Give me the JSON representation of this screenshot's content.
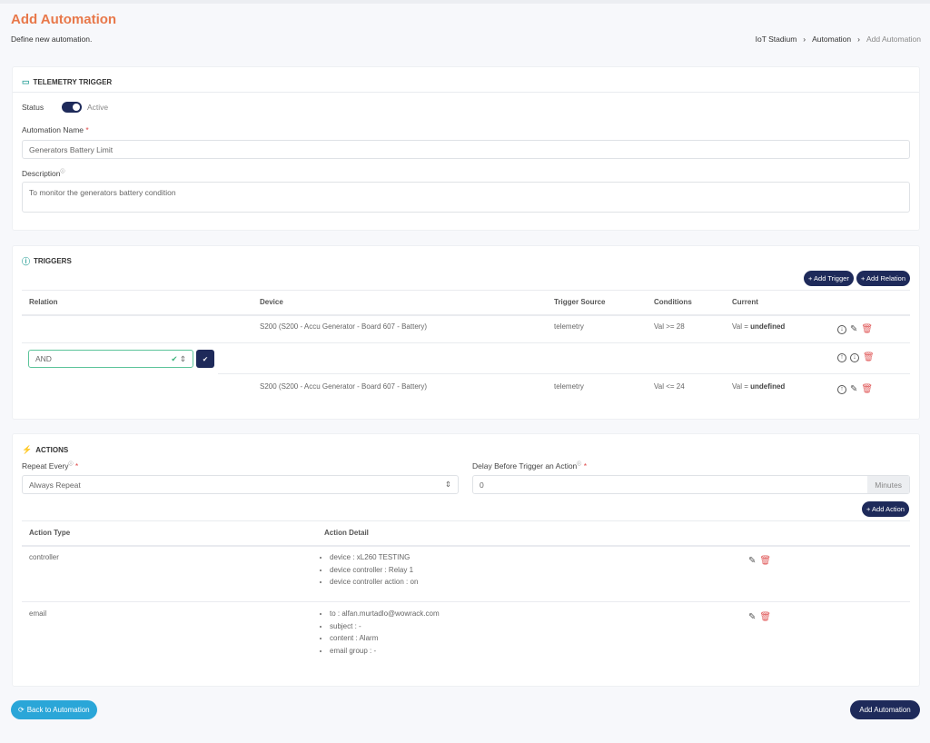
{
  "header": {
    "title": "Add Automation",
    "subtitle": "Define new automation.",
    "breadcrumb": [
      "IoT Stadium",
      "Automation",
      "Add Automation"
    ]
  },
  "telemetry": {
    "title": "TELEMETRY TRIGGER",
    "status_label": "Status",
    "status_value": "Active",
    "status_on": true,
    "name_label": "Automation Name",
    "name_value": "Generators Battery Limit",
    "desc_label": "Description",
    "desc_value": "To monitor the generators battery condition"
  },
  "triggers": {
    "title": "TRIGGERS",
    "add_trigger": "+ Add Trigger",
    "add_relation": "+ Add Relation",
    "columns": [
      "Relation",
      "Device",
      "Trigger Source",
      "Conditions",
      "Current"
    ],
    "rows": [
      {
        "device": "S200 (S200 - Accu Generator - Board 607 - Battery)",
        "source": "telemetry",
        "condition": "Val >= 28",
        "current_prefix": "Val = ",
        "current_value": "undefined"
      },
      {
        "relation": "AND"
      },
      {
        "device": "S200 (S200 - Accu Generator - Board 607 - Battery)",
        "source": "telemetry",
        "condition": "Val <= 24",
        "current_prefix": "Val = ",
        "current_value": "undefined"
      }
    ]
  },
  "actions": {
    "title": "ACTIONS",
    "repeat_label": "Repeat Every",
    "repeat_value": "Always Repeat",
    "delay_label": "Delay Before Trigger an Action",
    "delay_value": "0",
    "delay_unit": "Minutes",
    "add_action": "+ Add Action",
    "columns": [
      "Action Type",
      "Action Detail"
    ],
    "rows": [
      {
        "type": "controller",
        "details": [
          "device : xL260 TESTING",
          "device controller : Relay 1",
          "device controller action : on"
        ]
      },
      {
        "type": "email",
        "details": [
          "to : alfan.murtadlo@wowrack.com",
          "subject : -",
          "content : Alarm",
          "email group : -"
        ]
      }
    ]
  },
  "footer": {
    "back": "Back to Automation",
    "submit": "Add Automation"
  },
  "colors": {
    "accent": "#e8784a",
    "primary": "#1e2a5a",
    "back": "#2aa6d8",
    "danger": "#e05a5a"
  }
}
